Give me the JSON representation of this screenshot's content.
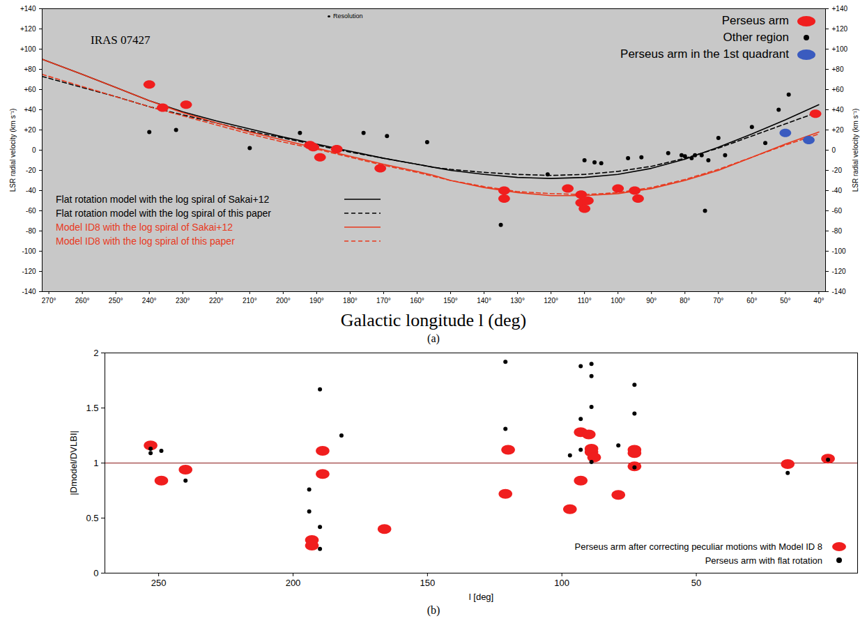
{
  "chart_data": [
    {
      "type": "scatter",
      "panel_label": "(a)",
      "xlabel": "Galactic longitude l (deg)",
      "ylabel": "LSR radial velocity (km s⁻¹)",
      "annotations": [
        "IRAS 07427",
        "Resolution"
      ],
      "xlim": [
        272,
        38
      ],
      "xticks": [
        {
          "value": 270,
          "label": "270°"
        },
        {
          "value": 260,
          "label": "260°"
        },
        {
          "value": 250,
          "label": "250°"
        },
        {
          "value": 240,
          "label": "240°"
        },
        {
          "value": 230,
          "label": "230°"
        },
        {
          "value": 220,
          "label": "220°"
        },
        {
          "value": 210,
          "label": "210°"
        },
        {
          "value": 200,
          "label": "200°"
        },
        {
          "value": 190,
          "label": "190°"
        },
        {
          "value": 180,
          "label": "180°"
        },
        {
          "value": 170,
          "label": "170°"
        },
        {
          "value": 160,
          "label": "160°"
        },
        {
          "value": 150,
          "label": "150°"
        },
        {
          "value": 140,
          "label": "140°"
        },
        {
          "value": 130,
          "label": "130°"
        },
        {
          "value": 120,
          "label": "120°"
        },
        {
          "value": 110,
          "label": "110°"
        },
        {
          "value": 100,
          "label": "100°"
        },
        {
          "value": 90,
          "label": "90°"
        },
        {
          "value": 80,
          "label": "80°"
        },
        {
          "value": 70,
          "label": "70°"
        },
        {
          "value": 60,
          "label": "60°"
        },
        {
          "value": 50,
          "label": "50°"
        },
        {
          "value": 40,
          "label": "40°"
        }
      ],
      "ylim": [
        -140,
        140
      ],
      "yticks": [
        {
          "value": 140,
          "label": "+140"
        },
        {
          "value": 120,
          "label": "+120"
        },
        {
          "value": 100,
          "label": "+100"
        },
        {
          "value": 80,
          "label": "+80"
        },
        {
          "value": 60,
          "label": "+60"
        },
        {
          "value": 40,
          "label": "+40"
        },
        {
          "value": 20,
          "label": "+20"
        },
        0,
        -20,
        -40,
        -60,
        -80,
        -100,
        -120,
        -140
      ],
      "legend": "top-right",
      "series": [
        {
          "name": "Flat rotation model with the log spiral of Sakai+12",
          "type": "line",
          "color": "#000000",
          "line_style": "solid",
          "x": [
            272,
            260,
            250,
            240,
            230,
            220,
            210,
            200,
            190,
            180,
            170,
            160,
            155,
            150,
            140,
            130,
            120,
            110,
            100,
            90,
            80,
            70,
            60,
            50,
            40
          ],
          "values": [
            90,
            75,
            62,
            49,
            38,
            29,
            21,
            13,
            6,
            -1,
            -8,
            -14,
            -17,
            -20,
            -24,
            -27,
            -28,
            -27,
            -24,
            -18,
            -9,
            3,
            16,
            30,
            45
          ]
        },
        {
          "name": "Flat rotation model with the log spiral of this paper",
          "type": "line",
          "color": "#000000",
          "line_style": "dashed",
          "x": [
            272,
            260,
            250,
            240,
            230,
            220,
            210,
            200,
            190,
            180,
            170,
            160,
            155,
            150,
            140,
            130,
            120,
            110,
            100,
            90,
            80,
            70,
            60,
            50,
            40
          ],
          "values": [
            73,
            62,
            53,
            43,
            35,
            27,
            19,
            12,
            5,
            -2,
            -8,
            -14,
            -17,
            -19,
            -22,
            -24,
            -25,
            -24,
            -21,
            -16,
            -8,
            2,
            14,
            26,
            38
          ]
        },
        {
          "name": "Model ID8 with the log spiral of Sakai+12",
          "type": "line",
          "color": "#e8391d",
          "line_style": "solid",
          "x": [
            272,
            260,
            250,
            240,
            230,
            220,
            210,
            200,
            190,
            180,
            170,
            160,
            155,
            150,
            140,
            130,
            120,
            110,
            100,
            90,
            80,
            70,
            60,
            50,
            40
          ],
          "values": [
            90,
            75,
            62,
            49,
            37,
            27,
            18,
            10,
            2,
            -6,
            -14,
            -21,
            -25,
            -30,
            -37,
            -42,
            -45,
            -45,
            -43,
            -38,
            -30,
            -20,
            -7,
            6,
            18
          ]
        },
        {
          "name": "Model ID8 with the log spiral of this paper",
          "type": "line",
          "color": "#e8391d",
          "line_style": "dashed",
          "x": [
            272,
            260,
            250,
            240,
            230,
            220,
            210,
            200,
            190,
            180,
            170,
            160,
            155,
            150,
            140,
            130,
            120,
            110,
            100,
            90,
            80,
            70,
            60,
            50,
            40
          ],
          "values": [
            75,
            63,
            53,
            43,
            34,
            25,
            16,
            8,
            1,
            -7,
            -15,
            -22,
            -26,
            -30,
            -36,
            -41,
            -43,
            -44,
            -42,
            -37,
            -29,
            -19,
            -7,
            5,
            16
          ]
        },
        {
          "name": "Perseus arm",
          "type": "scatter",
          "color": "#f01e1e",
          "marker": "ellipse",
          "x": [
            240,
            236,
            229,
            192,
            191,
            189,
            184,
            171,
            134,
            134,
            115,
            111,
            111,
            110,
            109,
            100,
            95,
            94,
            41
          ],
          "values": [
            65,
            42,
            45,
            5,
            3,
            -7,
            1,
            -18,
            -40,
            -48,
            -38,
            -44,
            -52,
            -58,
            -50,
            -38,
            -40,
            -48,
            36
          ]
        },
        {
          "name": "Other region",
          "type": "scatter",
          "color": "#000000",
          "marker": "dot",
          "x": [
            240,
            232,
            210,
            195,
            176,
            169,
            157,
            135,
            121,
            110,
            107,
            105,
            97,
            93,
            85,
            81,
            80,
            78,
            77,
            75,
            74,
            73,
            70,
            68,
            60,
            56,
            52,
            49
          ],
          "values": [
            18,
            20,
            2,
            17,
            17,
            14,
            8,
            -74,
            -24,
            -10,
            -12,
            -13,
            -8,
            -7,
            -3,
            -5,
            -6,
            -8,
            -5,
            -5,
            -60,
            -10,
            12,
            -5,
            23,
            7,
            40,
            55
          ]
        },
        {
          "name": "Perseus arm in the 1st quadrant",
          "type": "scatter",
          "color": "#3a5bbf",
          "marker": "ellipse",
          "x": [
            50,
            43
          ],
          "values": [
            17,
            10
          ]
        }
      ]
    },
    {
      "type": "scatter",
      "panel_label": "(b)",
      "xlabel": "l [deg]",
      "ylabel": "|Dmodel/DVLBI|",
      "xlim": [
        270,
        -10
      ],
      "xticks": [
        250,
        200,
        150,
        100,
        50
      ],
      "ylim": [
        0,
        2
      ],
      "yticks": [
        0,
        0.5,
        1,
        1.5,
        2
      ],
      "reference_line": 1,
      "legend": "bottom-right",
      "series": [
        {
          "name": "Perseus arm after correcting peculiar motions with Model ID 8",
          "type": "scatter",
          "color": "#f01e1e",
          "marker": "ellipse",
          "x": [
            253,
            249,
            240,
            193,
            193,
            189,
            189,
            166,
            121,
            120,
            97,
            93,
            93,
            90,
            89,
            89,
            88,
            79,
            73,
            73,
            73,
            16,
            1
          ],
          "values": [
            1.16,
            0.84,
            0.94,
            0.3,
            0.25,
            1.11,
            0.9,
            0.4,
            0.72,
            1.12,
            0.58,
            1.28,
            0.84,
            1.26,
            1.13,
            1.1,
            1.05,
            0.71,
            1.12,
            1.09,
            0.97,
            0.99,
            1.04
          ]
        },
        {
          "name": "Perseus arm with flat rotation",
          "type": "scatter",
          "color": "#000000",
          "marker": "dot",
          "x": [
            253,
            253,
            249,
            240,
            194,
            194,
            190,
            190,
            190,
            182,
            121,
            121,
            97,
            93,
            93,
            93,
            89,
            89,
            89,
            89,
            79,
            73,
            73,
            73,
            16,
            1
          ],
          "values": [
            1.13,
            1.09,
            1.11,
            0.84,
            0.76,
            0.56,
            1.67,
            0.42,
            0.22,
            1.25,
            1.92,
            1.31,
            1.07,
            1.88,
            1.4,
            1.12,
            1.9,
            1.79,
            1.51,
            1.01,
            1.16,
            1.71,
            1.45,
            0.96,
            0.91,
            1.03
          ]
        }
      ]
    }
  ]
}
